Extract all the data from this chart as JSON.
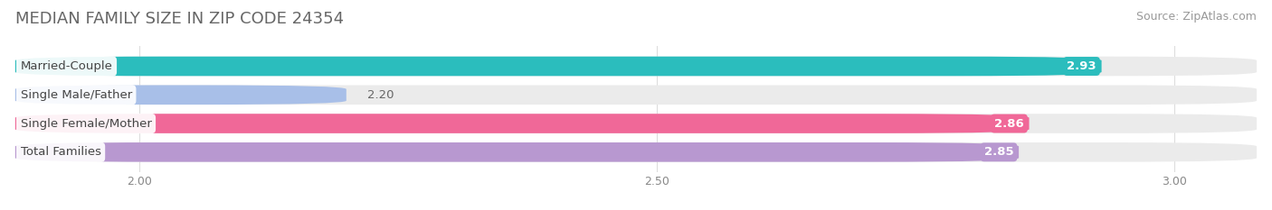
{
  "title": "MEDIAN FAMILY SIZE IN ZIP CODE 24354",
  "source": "Source: ZipAtlas.com",
  "categories": [
    "Married-Couple",
    "Single Male/Father",
    "Single Female/Mother",
    "Total Families"
  ],
  "values": [
    2.93,
    2.2,
    2.86,
    2.85
  ],
  "bar_colors": [
    "#2bbdbd",
    "#a8bfe8",
    "#f06898",
    "#b898d0"
  ],
  "label_bg_colors": [
    "#2bbdbd",
    "#a8bfe8",
    "#f06898",
    "#b898d0"
  ],
  "value_text_colors": [
    "white",
    "#777777",
    "white",
    "white"
  ],
  "xlim": [
    1.88,
    3.08
  ],
  "x_axis_start": 2.0,
  "xticks": [
    2.0,
    2.5,
    3.0
  ],
  "xtick_labels": [
    "2.00",
    "2.50",
    "3.00"
  ],
  "bar_height": 0.68,
  "background_color": "#ffffff",
  "bar_bg_color": "#ebebeb",
  "title_fontsize": 13,
  "source_fontsize": 9,
  "label_fontsize": 9.5,
  "value_fontsize": 9.5,
  "tick_fontsize": 9
}
